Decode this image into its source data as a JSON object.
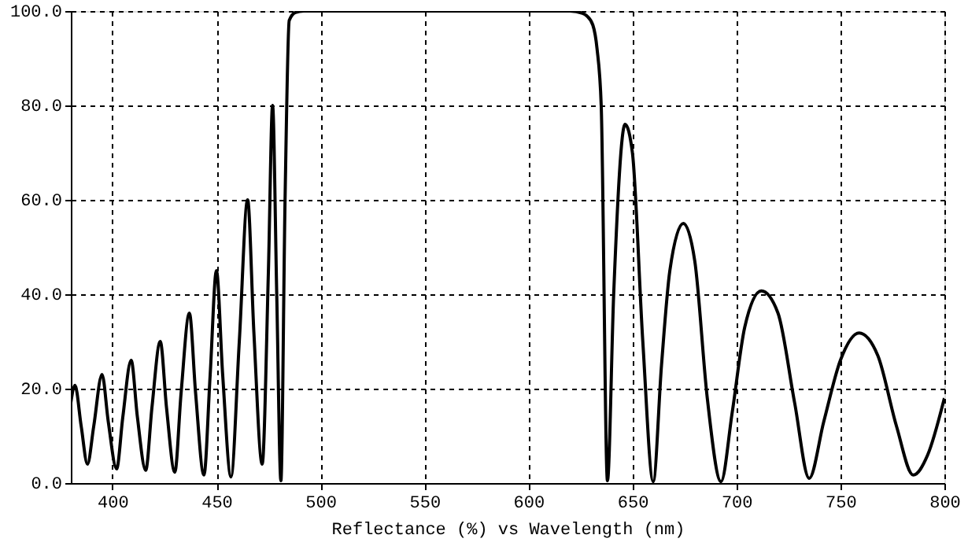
{
  "chart_data": {
    "type": "line",
    "xlabel": "Reflectance (%) vs Wavelength (nm)",
    "x": [
      380,
      382,
      385,
      388,
      391,
      395,
      398,
      402,
      405,
      409,
      412,
      416,
      419,
      423,
      426,
      430,
      433,
      437,
      440,
      444,
      447,
      450,
      453,
      457,
      461,
      465,
      468,
      472,
      475,
      477,
      479,
      481,
      483,
      485,
      488,
      492,
      500,
      550,
      600,
      620,
      626,
      628,
      631,
      633,
      635,
      638,
      641,
      646.5,
      650,
      655,
      660,
      664,
      668,
      674.5,
      680,
      686,
      692.6,
      698,
      704,
      712,
      720,
      728,
      735,
      742,
      750,
      759,
      768,
      777,
      785,
      792,
      800
    ],
    "series": [
      {
        "color": "#000000",
        "values": [
          17,
          20.7,
          12,
          4,
          12,
          23,
          13,
          3,
          14,
          26,
          14,
          2.7,
          16,
          30,
          16,
          2.3,
          19,
          36,
          19,
          1.7,
          23,
          45,
          23,
          1.3,
          30,
          60,
          32,
          4,
          45,
          80,
          40,
          0.5,
          60,
          98,
          99.7,
          100,
          100,
          100,
          100,
          100,
          99.5,
          99,
          97,
          92,
          80,
          0.5,
          40,
          76,
          70,
          30,
          0.3,
          25,
          45,
          55,
          47,
          18,
          0.3,
          15,
          33,
          40.7,
          36,
          17,
          1,
          13,
          26,
          31.8,
          27,
          12,
          1.7,
          6,
          18
        ]
      }
    ],
    "xlim": [
      380,
      800
    ],
    "xticks": [
      400,
      450,
      500,
      550,
      600,
      650,
      700,
      750,
      800
    ],
    "ylim": [
      0,
      100
    ],
    "yticks": [
      {
        "value": 0,
        "label": "0.0"
      },
      {
        "value": 20,
        "label": "20.0"
      },
      {
        "value": 40,
        "label": "40.0"
      },
      {
        "value": 60,
        "label": "60.0"
      },
      {
        "value": 80,
        "label": "80.0"
      },
      {
        "value": 100,
        "label": "100.0"
      }
    ],
    "grid": true,
    "line_style": "solid",
    "marker": "none"
  }
}
